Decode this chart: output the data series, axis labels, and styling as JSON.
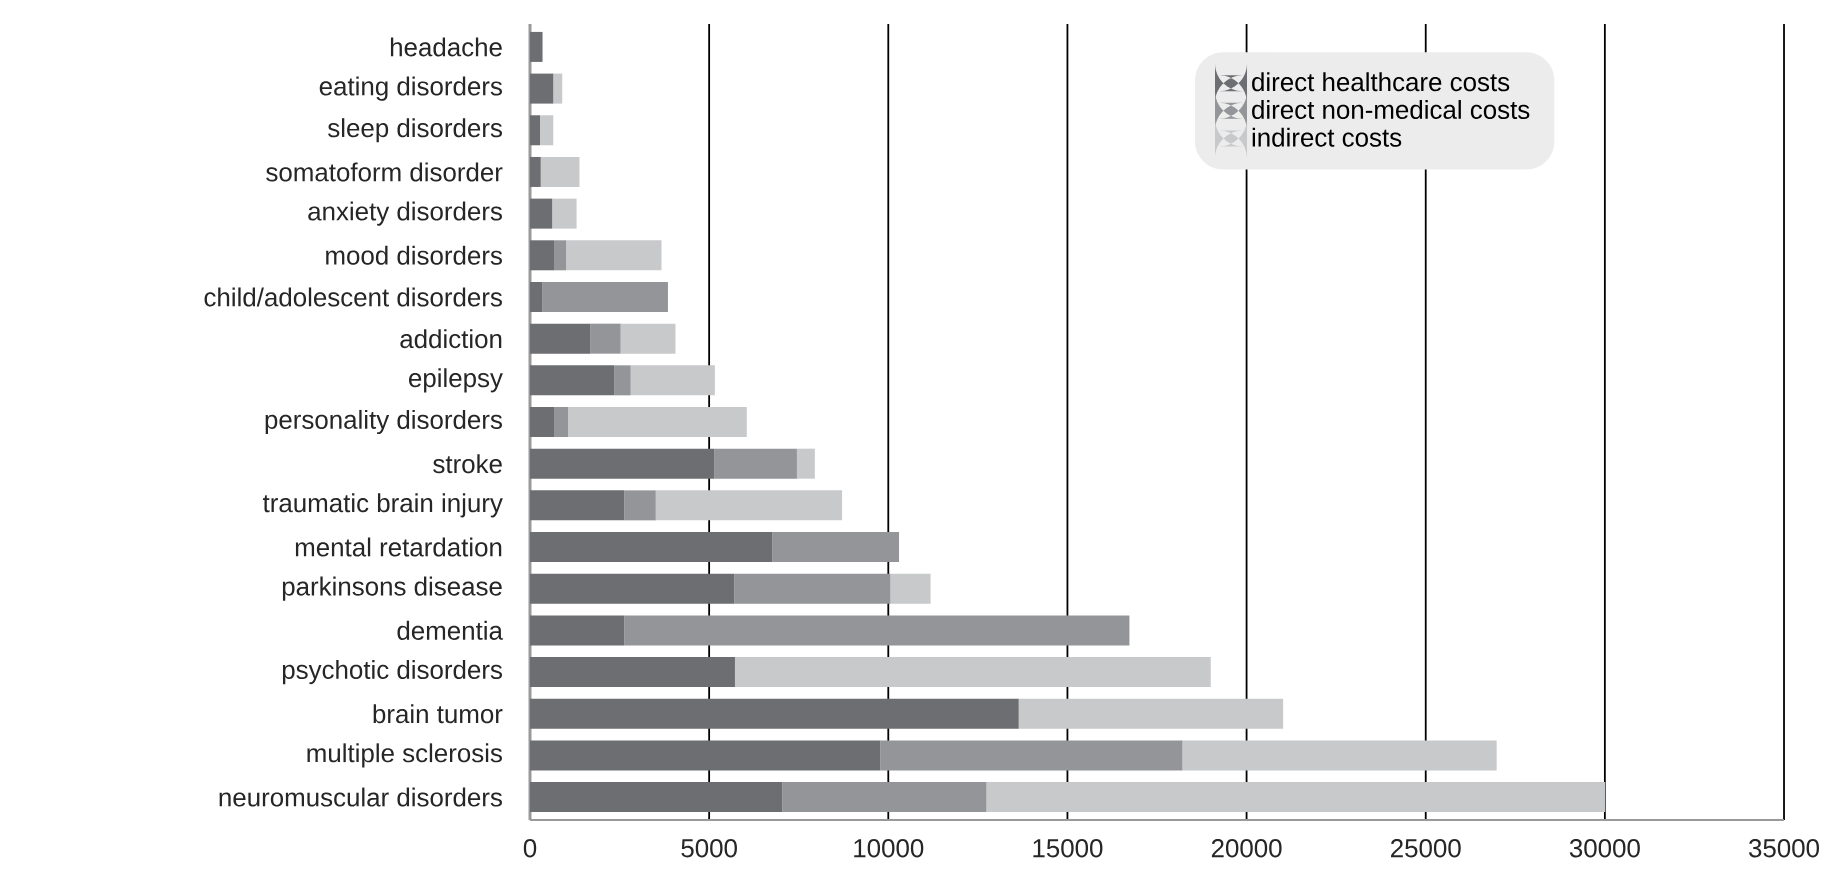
{
  "chart_data": {
    "type": "bar",
    "orientation": "horizontal",
    "stacked": true,
    "categories": [
      "headache",
      "eating disorders",
      "sleep disorders",
      "somatoform disorder",
      "anxiety disorders",
      "mood disorders",
      "child/adolescent disorders",
      "addiction",
      "epilepsy",
      "personality disorders",
      "stroke",
      "traumatic brain injury",
      "mental retardation",
      "parkinsons disease",
      "dementia",
      "psychotic disorders",
      "brain tumor",
      "multiple sclerosis",
      "neuromuscular disorders"
    ],
    "series": [
      {
        "name": "direct healthcare costs",
        "color": "#6d6e71",
        "values": [
          350,
          650,
          280,
          300,
          620,
          670,
          350,
          1680,
          2350,
          670,
          5140,
          2630,
          6760,
          5700,
          2630,
          5720,
          13640,
          9780,
          7040
        ]
      },
      {
        "name": "direct non-medical costs",
        "color": "#939598",
        "values": [
          0,
          0,
          0,
          0,
          0,
          340,
          3500,
          850,
          460,
          390,
          2310,
          880,
          3540,
          4360,
          14100,
          0,
          0,
          8430,
          5700
        ]
      },
      {
        "name": "indirect costs",
        "color": "#c8c9cb",
        "values": [
          0,
          250,
          370,
          1080,
          680,
          2660,
          0,
          1530,
          2350,
          4990,
          500,
          5200,
          0,
          1120,
          0,
          13280,
          7380,
          8770,
          17270
        ]
      }
    ],
    "xlim": [
      0,
      35000
    ],
    "xticks": [
      0,
      5000,
      10000,
      15000,
      20000,
      25000,
      30000,
      35000
    ],
    "grid": "x",
    "legend": "top right"
  }
}
